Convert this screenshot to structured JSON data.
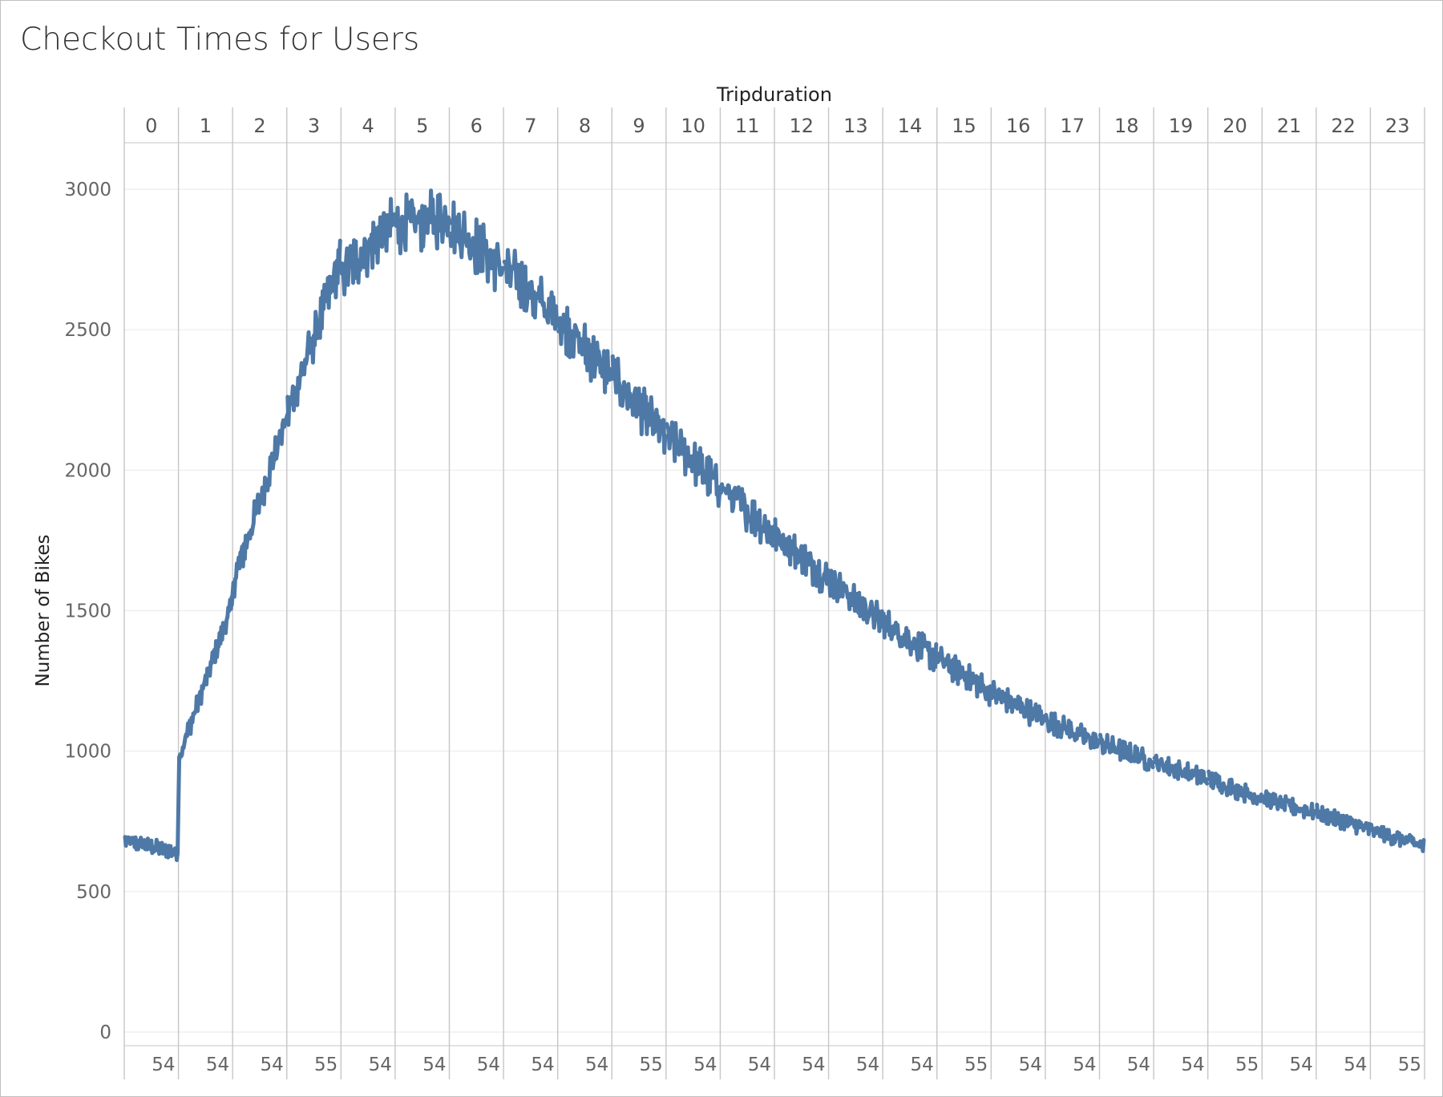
{
  "chart_data": {
    "type": "line",
    "title": "Checkout Times for Users",
    "column_header": "Tripduration",
    "ylabel": "Number of Bikes",
    "ylim": [
      0,
      3000
    ],
    "y_ticks": [
      0,
      500,
      1000,
      1500,
      2000,
      2500,
      3000
    ],
    "panels": [
      {
        "label": "0",
        "bottom_label": "54",
        "start": 680,
        "end": 640
      },
      {
        "label": "1",
        "bottom_label": "54",
        "start": 980,
        "end": 1520
      },
      {
        "label": "2",
        "bottom_label": "54",
        "start": 1600,
        "end": 2180
      },
      {
        "label": "3",
        "bottom_label": "55",
        "start": 2200,
        "end": 2740
      },
      {
        "label": "4",
        "bottom_label": "54",
        "start": 2700,
        "end": 2880
      },
      {
        "label": "5",
        "bottom_label": "54",
        "start": 2870,
        "end": 2900
      },
      {
        "label": "6",
        "bottom_label": "54",
        "start": 2880,
        "end": 2720
      },
      {
        "label": "7",
        "bottom_label": "54",
        "start": 2720,
        "end": 2540
      },
      {
        "label": "8",
        "bottom_label": "54",
        "start": 2540,
        "end": 2330
      },
      {
        "label": "9",
        "bottom_label": "55",
        "start": 2330,
        "end": 2120
      },
      {
        "label": "10",
        "bottom_label": "54",
        "start": 2120,
        "end": 1940
      },
      {
        "label": "11",
        "bottom_label": "54",
        "start": 1940,
        "end": 1770
      },
      {
        "label": "12",
        "bottom_label": "54",
        "start": 1770,
        "end": 1610
      },
      {
        "label": "13",
        "bottom_label": "54",
        "start": 1610,
        "end": 1460
      },
      {
        "label": "14",
        "bottom_label": "54",
        "start": 1460,
        "end": 1330
      },
      {
        "label": "15",
        "bottom_label": "55",
        "start": 1330,
        "end": 1210
      },
      {
        "label": "16",
        "bottom_label": "54",
        "start": 1210,
        "end": 1110
      },
      {
        "label": "17",
        "bottom_label": "54",
        "start": 1110,
        "end": 1030
      },
      {
        "label": "18",
        "bottom_label": "54",
        "start": 1030,
        "end": 960
      },
      {
        "label": "19",
        "bottom_label": "54",
        "start": 960,
        "end": 900
      },
      {
        "label": "20",
        "bottom_label": "55",
        "start": 900,
        "end": 830
      },
      {
        "label": "21",
        "bottom_label": "54",
        "start": 830,
        "end": 780
      },
      {
        "label": "22",
        "bottom_label": "54",
        "start": 780,
        "end": 720
      },
      {
        "label": "23",
        "bottom_label": "55",
        "start": 720,
        "end": 660
      }
    ],
    "line_color": "#4e79a7",
    "grid": true,
    "legend": "none"
  }
}
